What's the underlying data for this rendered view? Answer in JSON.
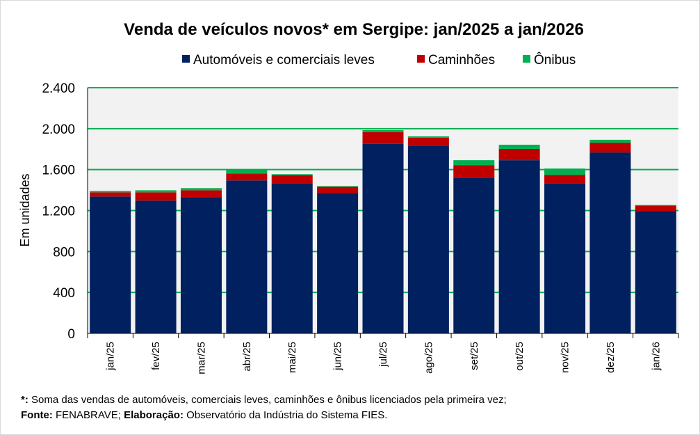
{
  "chart_data": {
    "type": "bar",
    "stacked": true,
    "title": "Venda de veículos novos* em Sergipe: jan/2025 a jan/2026",
    "xlabel": "",
    "ylabel": "Em unidades",
    "ylim": [
      0,
      2400
    ],
    "yticks": [
      0,
      400,
      800,
      1200,
      1600,
      2000,
      2400
    ],
    "ytick_labels": [
      "0",
      "400",
      "800",
      "1.200",
      "1.600",
      "2.000",
      "2.400"
    ],
    "grid": true,
    "legend_position": "top",
    "categories": [
      "jan/25",
      "fev/25",
      "mar/25",
      "abr/25",
      "mai/25",
      "jun/25",
      "jul/25",
      "ago/25",
      "set/25",
      "out/25",
      "nov/25",
      "dez/25",
      "jan/26"
    ],
    "series": [
      {
        "name": "Automóveis e comerciais leves",
        "color": "#002060",
        "values": [
          1337,
          1297,
          1330,
          1494,
          1466,
          1371,
          1850,
          1829,
          1521,
          1692,
          1462,
          1767,
          1193
        ]
      },
      {
        "name": "Caminhões",
        "color": "#c00000",
        "values": [
          41,
          81,
          68,
          68,
          80,
          61,
          116,
          82,
          123,
          110,
          87,
          96,
          55
        ]
      },
      {
        "name": "Ônibus",
        "color": "#00b050",
        "values": [
          13,
          20,
          21,
          43,
          9,
          7,
          20,
          14,
          48,
          41,
          61,
          28,
          6
        ]
      }
    ]
  },
  "footnote": {
    "line1_bold": "*:",
    "line1_text": " Soma das vendas de automóveis, comerciais leves, caminhões e ônibus licenciados pela primeira vez;",
    "line2_bold1": "Fonte:",
    "line2_text1": " FENABRAVE; ",
    "line2_bold2": "Elaboração:",
    "line2_text2": " Observatório da Indústria do Sistema FIES."
  },
  "colors": {
    "grid": "#00b050",
    "plot_bg": "#f2f2f2"
  }
}
